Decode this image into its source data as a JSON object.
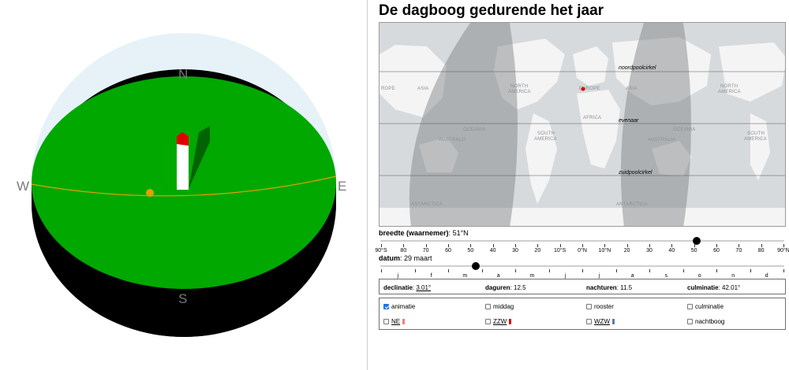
{
  "sphere": {
    "compass": {
      "north": "N",
      "south": "S",
      "west": "W",
      "east": "E"
    },
    "colors": {
      "sky": "#e6f2f8",
      "ground": "#00a800",
      "underside": "#000000",
      "sun_path": "#e0a000",
      "sun": "#e0a000",
      "gnomon": "#ffffff",
      "gnomon_tip": "#e00000",
      "shadow": "#006400"
    }
  },
  "panel": {
    "title": "De dagboog gedurende het jaar",
    "map": {
      "labels": {
        "north_circle": "noordpoolcirkel",
        "equator": "evenaar",
        "south_circle": "zuidpoolcirkel"
      },
      "continents": [
        {
          "text": "ASIA"
        },
        {
          "text": "ROPE"
        },
        {
          "text": "NORTH"
        },
        {
          "text": "AMERICA"
        },
        {
          "text": "EUROPE"
        },
        {
          "text": "ASIA"
        },
        {
          "text": "NORTH"
        },
        {
          "text": "AMERICA"
        },
        {
          "text": "OCEANIA"
        },
        {
          "text": "AUSTRALIA"
        },
        {
          "text": "SOUTH"
        },
        {
          "text": "AMERICA"
        },
        {
          "text": "AFRICA"
        },
        {
          "text": "AUSTRALIA"
        },
        {
          "text": "OCEANIA"
        },
        {
          "text": "SOUTH"
        },
        {
          "text": "AMERICA"
        },
        {
          "text": "ANTARCTICA"
        },
        {
          "text": "ANTARCTICA"
        }
      ],
      "observer_color": "#e00000"
    },
    "latitude": {
      "label": "breedte (waarnemer)",
      "value": "51°N",
      "slider_fraction": 0.783,
      "ticks": [
        "90°S",
        "80",
        "70",
        "60",
        "50",
        "40",
        "30",
        "20",
        "10°S",
        "0°N",
        "10°N",
        "20",
        "30",
        "40",
        "50",
        "60",
        "70",
        "80",
        "90°N"
      ]
    },
    "date": {
      "label": "datum",
      "value": "29 maart",
      "slider_fraction": 0.237,
      "ticks": [
        "j",
        "f",
        "m",
        "a",
        "m",
        "j",
        "j",
        "a",
        "s",
        "o",
        "n",
        "d"
      ]
    },
    "stats": {
      "declination_label": "declinatie",
      "declination_value": "3.01°",
      "day_hours_label": "daguren",
      "day_hours_value": "12.5",
      "night_hours_label": "nachturen",
      "night_hours_value": "11.5",
      "culmination_label": "culminatie",
      "culmination_value": "42.01°"
    },
    "options": {
      "animation": {
        "label": "animatie",
        "checked": true
      },
      "noon": {
        "label": "middag",
        "checked": false
      },
      "grid": {
        "label": "rooster",
        "checked": false
      },
      "culmination": {
        "label": "culminatie",
        "checked": false
      },
      "ne": {
        "label": "NE",
        "checked": false,
        "color": "#f08080"
      },
      "zzw": {
        "label": "ZZW",
        "checked": false,
        "color": "#e00000"
      },
      "wzw": {
        "label": "WZW",
        "checked": false,
        "color": "#5b7fa8"
      },
      "night_arc": {
        "label": "nachtboog",
        "checked": false
      }
    }
  }
}
